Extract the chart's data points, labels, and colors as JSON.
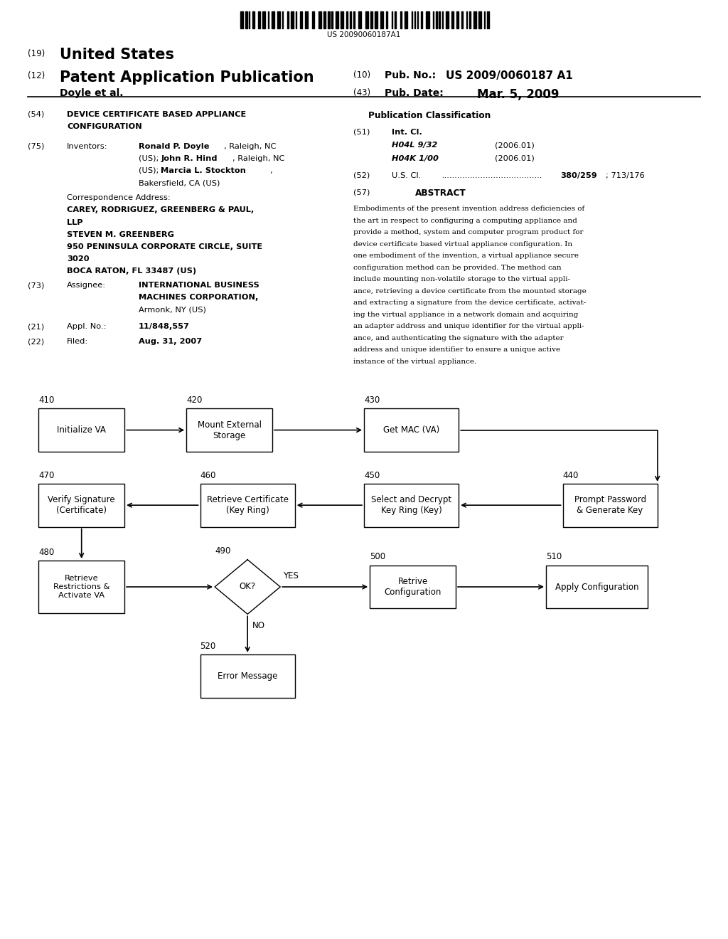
{
  "background_color": "#ffffff",
  "barcode_text": "US 20090060187A1",
  "header": {
    "num19": "(19)",
    "united_states": "United States",
    "num12": "(12)",
    "pat_app_pub": "Patent Application Publication",
    "num10": "(10)",
    "pub_no_label": "Pub. No.:",
    "pub_no_value": "US 2009/0060187 A1",
    "inventor": "Doyle et al.",
    "num43": "(43)",
    "pub_date_label": "Pub. Date:",
    "pub_date_value": "Mar. 5, 2009"
  },
  "left_col": {
    "num54": "(54)",
    "num75": "(75)",
    "num73": "(73)",
    "num21": "(21)",
    "num22": "(22)",
    "appl_value": "11/848,557",
    "filed_value": "Aug. 31, 2007"
  },
  "right_col": {
    "pub_class_title": "Publication Classification",
    "int_cl_1": "H04L 9/32",
    "int_cl_1_date": "(2006.01)",
    "int_cl_2": "H04K 1/00",
    "int_cl_2_date": "(2006.01)",
    "us_cl_dots": ".......................................",
    "us_cl_bold": "380/259",
    "us_cl_normal": "; 713/176",
    "abstract_text": "Embodiments of the present invention address deficiencies of\nthe art in respect to configuring a computing appliance and\nprovide a method, system and computer program product for\ndevice certificate based virtual appliance configuration. In\none embodiment of the invention, a virtual appliance secure\nconfiguration method can be provided. The method can\ninclude mounting non-volatile storage to the virtual appli-\nance, retrieving a device certificate from the mounted storage\nand extracting a signature from the device certificate, activat-\ning the virtual appliance in a network domain and acquiring\nan adapter address and unique identifier for the virtual appli-\nance, and authenticating the signature with the adapter\naddress and unique identifier to ensure a unique active\ninstance of the virtual appliance."
  }
}
